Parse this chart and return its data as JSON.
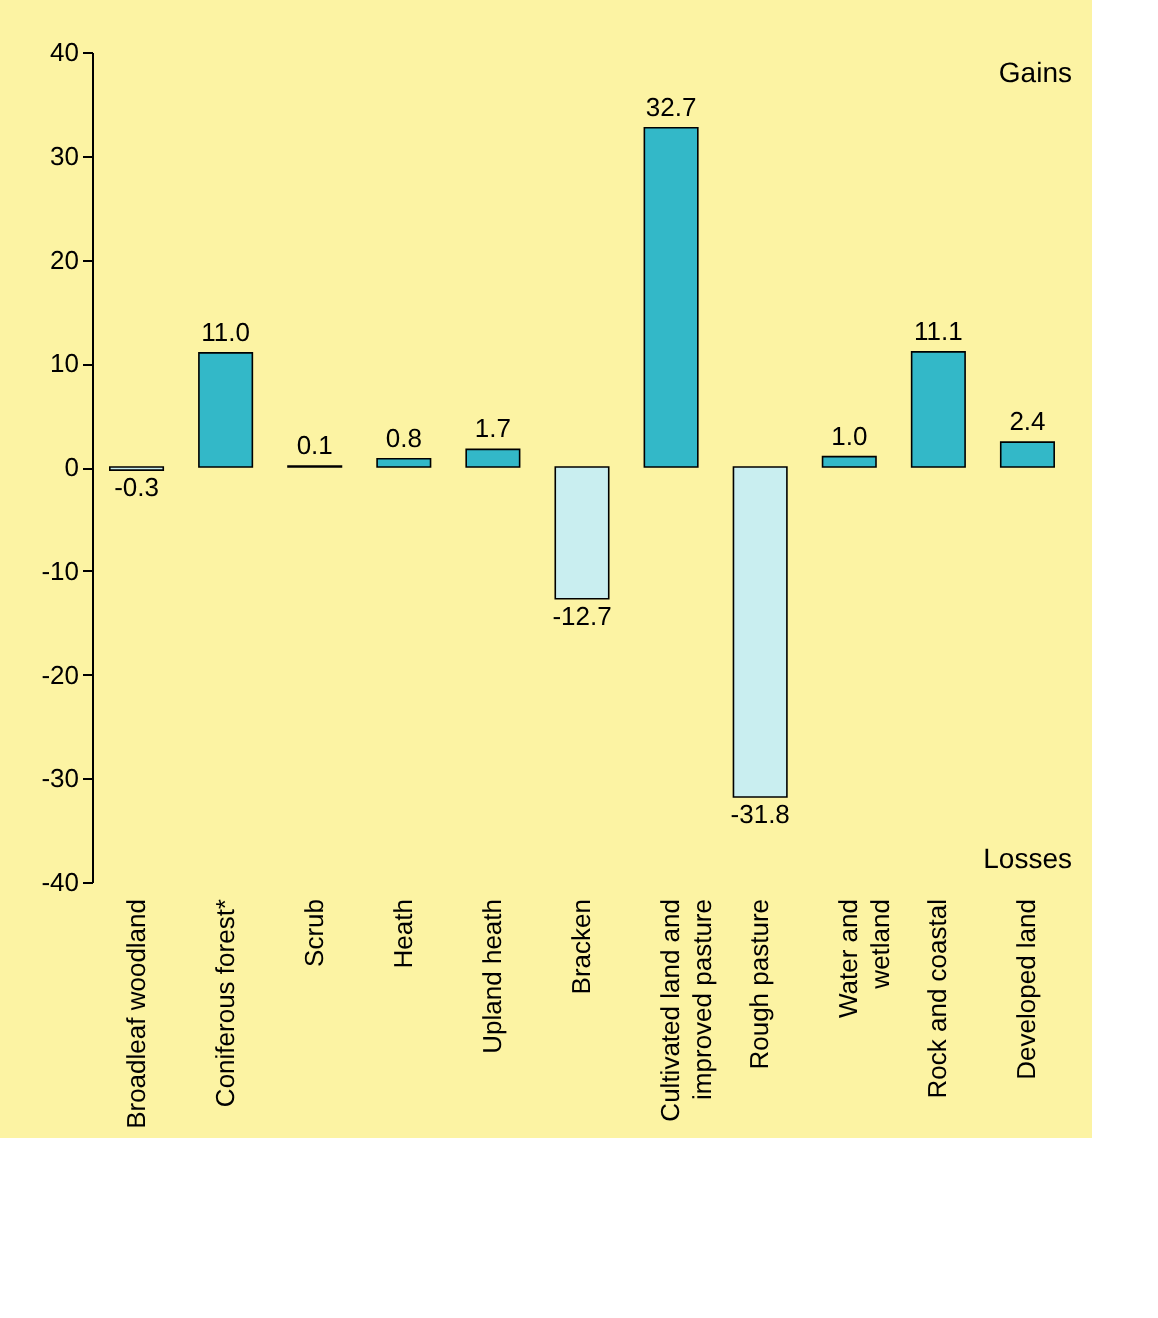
{
  "chart_data": {
    "type": "bar",
    "categories": [
      "Broadleaf woodland",
      "Coniferous forest*",
      "Scrub",
      "Heath",
      "Upland heath",
      "Bracken",
      "Cultivated land and\nimproved pasture",
      "Rough pasture",
      "Water and\nwetland",
      "Rock and coastal",
      "Developed land"
    ],
    "values": [
      -0.3,
      11.0,
      0.1,
      0.8,
      1.7,
      -12.7,
      32.7,
      -31.8,
      1.0,
      11.1,
      2.4
    ],
    "colors": [
      "#c9eef0",
      "#33b8c8",
      "#33b8c8",
      "#33b8c8",
      "#33b8c8",
      "#c9eef0",
      "#33b8c8",
      "#c9eef0",
      "#33b8c8",
      "#33b8c8",
      "#33b8c8"
    ],
    "ylim": [
      -40,
      40
    ],
    "yticks": [
      -40,
      -30,
      -20,
      -10,
      0,
      10,
      20,
      30,
      40
    ],
    "grid": false,
    "value_labels": [
      "-0.3",
      "11.0",
      "0.1",
      "0.8",
      "1.7",
      "-12.7",
      "32.7",
      "-31.8",
      "1.0",
      "11.1",
      "2.4"
    ],
    "annotations": [
      "Gains",
      "Losses"
    ]
  }
}
